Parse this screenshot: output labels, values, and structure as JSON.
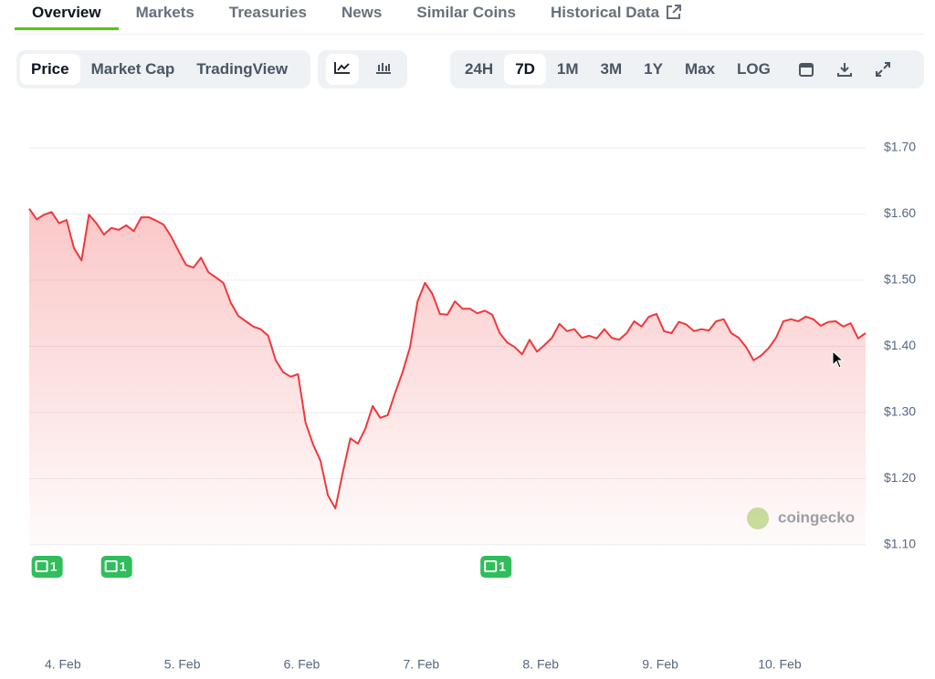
{
  "tabs": [
    "Overview",
    "Markets",
    "Treasuries",
    "News",
    "Similar Coins",
    "Historical Data"
  ],
  "chart_modes": [
    "Price",
    "Market Cap",
    "TradingView"
  ],
  "ranges": [
    "24H",
    "7D",
    "1M",
    "3M",
    "1Y",
    "Max",
    "LOG"
  ],
  "chart_data": {
    "type": "line",
    "color": "#f0383b",
    "watermark": "coingecko",
    "values": [
      1.608,
      1.592,
      1.599,
      1.603,
      1.586,
      1.591,
      1.548,
      1.53,
      1.599,
      1.586,
      1.569,
      1.579,
      1.576,
      1.583,
      1.574,
      1.595,
      1.595,
      1.59,
      1.584,
      1.566,
      1.544,
      1.523,
      1.519,
      1.534,
      1.512,
      1.504,
      1.496,
      1.466,
      1.446,
      1.438,
      1.43,
      1.426,
      1.416,
      1.379,
      1.361,
      1.354,
      1.358,
      1.285,
      1.252,
      1.227,
      1.175,
      1.155,
      1.21,
      1.261,
      1.253,
      1.275,
      1.31,
      1.292,
      1.296,
      1.33,
      1.361,
      1.399,
      1.468,
      1.496,
      1.479,
      1.449,
      1.448,
      1.468,
      1.457,
      1.457,
      1.45,
      1.454,
      1.448,
      1.42,
      1.406,
      1.399,
      1.388,
      1.41,
      1.392,
      1.402,
      1.413,
      1.434,
      1.423,
      1.426,
      1.413,
      1.416,
      1.412,
      1.426,
      1.413,
      1.41,
      1.42,
      1.438,
      1.43,
      1.445,
      1.449,
      1.423,
      1.42,
      1.437,
      1.433,
      1.423,
      1.426,
      1.424,
      1.438,
      1.441,
      1.42,
      1.413,
      1.399,
      1.379,
      1.386,
      1.397,
      1.413,
      1.438,
      1.441,
      1.438,
      1.445,
      1.441,
      1.431,
      1.437,
      1.438,
      1.43,
      1.435,
      1.412,
      1.42
    ],
    "xlim": [
      0,
      112
    ],
    "xticks": [
      {
        "value": 4.5,
        "label": "4. Feb"
      },
      {
        "value": 20.5,
        "label": "5. Feb"
      },
      {
        "value": 36.5,
        "label": "6. Feb"
      },
      {
        "value": 52.5,
        "label": "7. Feb"
      },
      {
        "value": 68.5,
        "label": "8. Feb"
      },
      {
        "value": 84.5,
        "label": "9. Feb"
      },
      {
        "value": 100.5,
        "label": "10. Feb"
      }
    ],
    "ylim": [
      1.1,
      1.7
    ],
    "yticks": [
      {
        "value": 1.1,
        "label": "$1.10"
      },
      {
        "value": 1.2,
        "label": "$1.20"
      },
      {
        "value": 1.3,
        "label": "$1.30"
      },
      {
        "value": 1.4,
        "label": "$1.40"
      },
      {
        "value": 1.5,
        "label": "$1.50"
      },
      {
        "value": 1.6,
        "label": "$1.60"
      },
      {
        "value": 1.7,
        "label": "$1.70"
      }
    ],
    "grid": true,
    "annotations": [
      {
        "x": 2.4,
        "label": "1"
      },
      {
        "x": 11.7,
        "label": "1"
      },
      {
        "x": 62.5,
        "label": "1"
      }
    ]
  }
}
